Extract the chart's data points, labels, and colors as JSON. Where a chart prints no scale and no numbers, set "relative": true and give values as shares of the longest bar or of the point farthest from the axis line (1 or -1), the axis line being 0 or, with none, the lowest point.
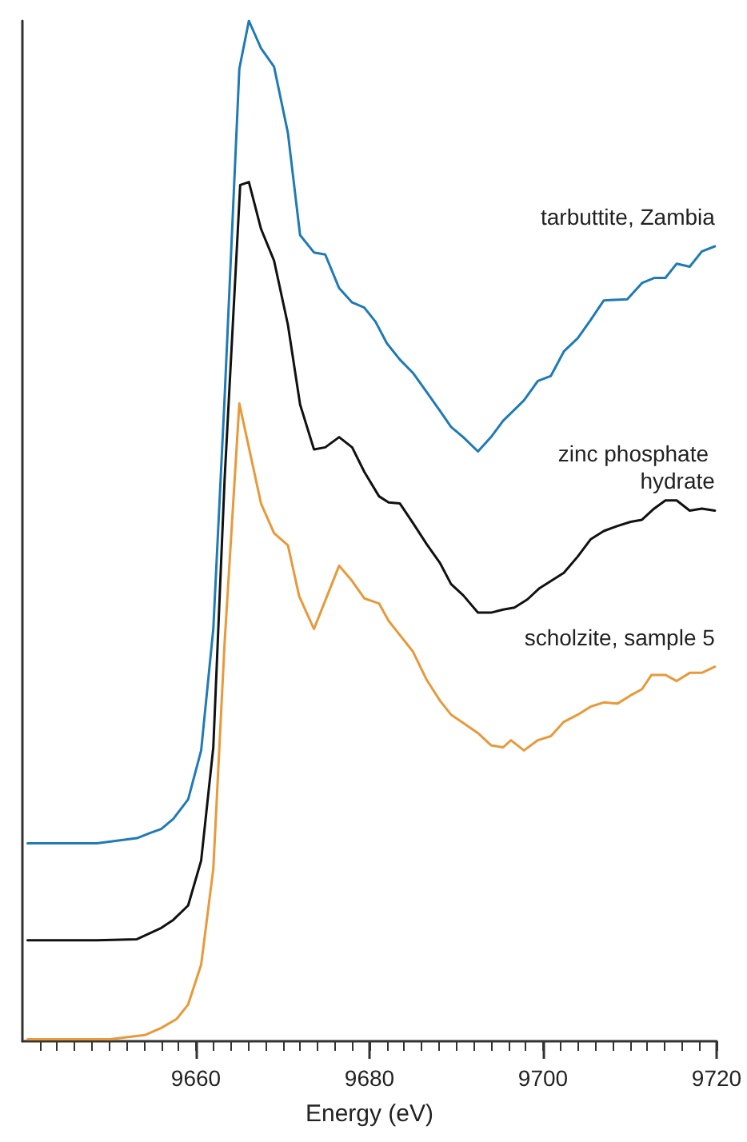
{
  "chart_data": {
    "type": "line",
    "xlabel": "Energy (eV)",
    "relative": true,
    "xlim": [
      9640,
      9720
    ],
    "xticks": [
      {
        "value": 9642,
        "label": null
      },
      {
        "value": 9644,
        "label": null
      },
      {
        "value": 9646,
        "label": null
      },
      {
        "value": 9648,
        "label": null
      },
      {
        "value": 9650,
        "label": null
      },
      {
        "value": 9652,
        "label": null
      },
      {
        "value": 9654,
        "label": null
      },
      {
        "value": 9656,
        "label": null
      },
      {
        "value": 9658,
        "label": null
      },
      9660,
      {
        "value": 9662,
        "label": null
      },
      {
        "value": 9664,
        "label": null
      },
      {
        "value": 9666,
        "label": null
      },
      {
        "value": 9668,
        "label": null
      },
      {
        "value": 9670,
        "label": null
      },
      {
        "value": 9672,
        "label": null
      },
      {
        "value": 9674,
        "label": null
      },
      {
        "value": 9676,
        "label": null
      },
      {
        "value": 9678,
        "label": null
      },
      9680,
      {
        "value": 9682,
        "label": null
      },
      {
        "value": 9684,
        "label": null
      },
      {
        "value": 9686,
        "label": null
      },
      {
        "value": 9688,
        "label": null
      },
      {
        "value": 9690,
        "label": null
      },
      {
        "value": 9692,
        "label": null
      },
      {
        "value": 9694,
        "label": null
      },
      {
        "value": 9696,
        "label": null
      },
      {
        "value": 9698,
        "label": null
      },
      9700,
      {
        "value": 9702,
        "label": null
      },
      {
        "value": 9704,
        "label": null
      },
      {
        "value": 9706,
        "label": null
      },
      {
        "value": 9708,
        "label": null
      },
      {
        "value": 9710,
        "label": null
      },
      {
        "value": 9712,
        "label": null
      },
      {
        "value": 9714,
        "label": null
      },
      {
        "value": 9716,
        "label": null
      },
      {
        "value": 9718,
        "label": null
      },
      9720
    ],
    "legend": false,
    "grid": false,
    "series": [
      {
        "name": "tarbuttite, Zambia",
        "color": "#1f7bb5",
        "x": [
          9640.6,
          9645,
          9648.6,
          9653.2,
          9654.7,
          9656,
          9657.4,
          9659.1,
          9660.6,
          9662,
          9663.3,
          9665,
          9666.1,
          9667.5,
          9669,
          9670.6,
          9672,
          9673.6,
          9674.9,
          9676.5,
          9678,
          9679.4,
          9680.7,
          9682,
          9683.5,
          9685,
          9686.6,
          9688.1,
          9689.4,
          9690.8,
          9692.5,
          9694,
          9695.4,
          9697.8,
          9699.4,
          9700.9,
          9702.4,
          9704,
          9705.5,
          9707,
          9709.7,
          9711.4,
          9712.8,
          9714.1,
          9715.4,
          9716.9,
          9718.3,
          9719.8
        ],
        "values": [
          0.194,
          0.194,
          0.194,
          0.199,
          0.204,
          0.208,
          0.218,
          0.237,
          0.285,
          0.404,
          0.63,
          0.953,
          1.0,
          0.973,
          0.955,
          0.89,
          0.79,
          0.773,
          0.771,
          0.738,
          0.724,
          0.719,
          0.705,
          0.684,
          0.668,
          0.655,
          0.636,
          0.618,
          0.602,
          0.592,
          0.578,
          0.592,
          0.608,
          0.628,
          0.647,
          0.652,
          0.676,
          0.689,
          0.707,
          0.726,
          0.727,
          0.743,
          0.748,
          0.748,
          0.762,
          0.759,
          0.774,
          0.779
        ]
      },
      {
        "name": "zinc phosphate hydrate",
        "color": "#111111",
        "x": [
          9640.6,
          9645,
          9648.6,
          9653.2,
          9656,
          9657.4,
          9659.1,
          9660.6,
          9662,
          9663.3,
          9665.1,
          9666.1,
          9667.5,
          9669,
          9670.6,
          9672,
          9673.6,
          9674.9,
          9676.5,
          9678,
          9679.4,
          9681.1,
          9682.2,
          9683.5,
          9685,
          9686.6,
          9688.1,
          9689.4,
          9690.8,
          9692.5,
          9694,
          9695.4,
          9696.7,
          9698.2,
          9699.6,
          9702.4,
          9704,
          9705.5,
          9707,
          9708.6,
          9710.1,
          9711.4,
          9712.8,
          9714.1,
          9715.4,
          9716.9,
          9718.3,
          9719.8
        ],
        "values": [
          0.099,
          0.099,
          0.099,
          0.1,
          0.111,
          0.119,
          0.133,
          0.177,
          0.288,
          0.55,
          0.839,
          0.842,
          0.796,
          0.765,
          0.702,
          0.624,
          0.58,
          0.582,
          0.592,
          0.582,
          0.558,
          0.534,
          0.528,
          0.527,
          0.508,
          0.487,
          0.469,
          0.448,
          0.437,
          0.42,
          0.42,
          0.423,
          0.425,
          0.433,
          0.444,
          0.459,
          0.475,
          0.492,
          0.5,
          0.505,
          0.509,
          0.511,
          0.522,
          0.53,
          0.53,
          0.52,
          0.522,
          0.52
        ]
      },
      {
        "name": "scholzite, sample 5",
        "color": "#e8993a",
        "x": [
          9640.6,
          9645,
          9650.1,
          9654.1,
          9656,
          9657.8,
          9659.1,
          9660.6,
          9662,
          9663.3,
          9665,
          9667.5,
          9669,
          9670.6,
          9671.9,
          9673.6,
          9676.5,
          9678,
          9679.4,
          9681.1,
          9682.2,
          9683.5,
          9685,
          9686.6,
          9688.1,
          9689.4,
          9690.8,
          9692.5,
          9694,
          9695.4,
          9696.3,
          9697.8,
          9699.4,
          9700.9,
          9702.4,
          9704,
          9705.5,
          9707,
          9708.6,
          9710.1,
          9711.4,
          9712.5,
          9714.1,
          9715.4,
          9716.9,
          9718.3,
          9719.8
        ],
        "values": [
          0.002,
          0.002,
          0.002,
          0.006,
          0.013,
          0.022,
          0.036,
          0.075,
          0.169,
          0.39,
          0.625,
          0.527,
          0.498,
          0.486,
          0.436,
          0.404,
          0.466,
          0.451,
          0.434,
          0.429,
          0.412,
          0.398,
          0.382,
          0.354,
          0.334,
          0.32,
          0.312,
          0.302,
          0.29,
          0.288,
          0.295,
          0.285,
          0.295,
          0.299,
          0.313,
          0.32,
          0.328,
          0.332,
          0.331,
          0.339,
          0.345,
          0.359,
          0.359,
          0.353,
          0.361,
          0.361,
          0.367
        ]
      }
    ]
  }
}
